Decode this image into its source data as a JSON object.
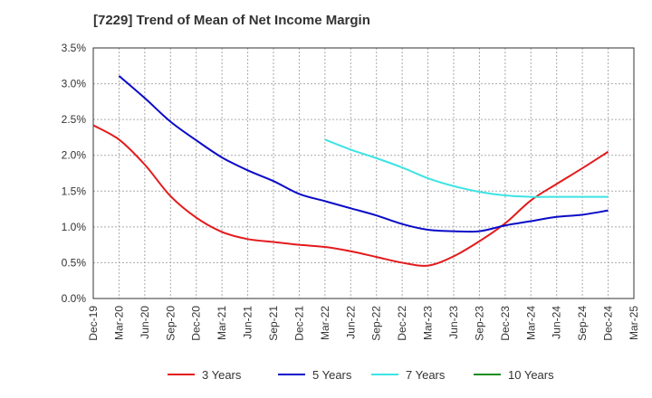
{
  "chart_data": {
    "type": "line",
    "title": "[7229]  Trend of Mean of Net Income Margin",
    "xlabel": "",
    "ylabel": "",
    "ylim": [
      0,
      3.5
    ],
    "y_ticks": [
      "0.0%",
      "0.5%",
      "1.0%",
      "1.5%",
      "2.0%",
      "2.5%",
      "3.0%",
      "3.5%"
    ],
    "x_ticks": [
      "Dec-19",
      "Mar-20",
      "Jun-20",
      "Sep-20",
      "Dec-20",
      "Mar-21",
      "Jun-21",
      "Sep-21",
      "Dec-21",
      "Mar-22",
      "Jun-22",
      "Sep-22",
      "Dec-22",
      "Mar-23",
      "Jun-23",
      "Sep-23",
      "Dec-23",
      "Mar-24",
      "Jun-24",
      "Sep-24",
      "Dec-24",
      "Mar-25"
    ],
    "grid": true,
    "legend_position": "bottom",
    "series": [
      {
        "name": "3 Years",
        "color": "#e31a1c",
        "x": [
          "Dec-19",
          "Mar-20",
          "Jun-20",
          "Sep-20",
          "Dec-20",
          "Mar-21",
          "Jun-21",
          "Sep-21",
          "Dec-21",
          "Mar-22",
          "Jun-22",
          "Sep-22",
          "Dec-22",
          "Mar-23",
          "Jun-23",
          "Sep-23",
          "Dec-23",
          "Mar-24",
          "Jun-24",
          "Sep-24",
          "Dec-24"
        ],
        "values": [
          2.42,
          2.22,
          1.87,
          1.43,
          1.13,
          0.93,
          0.83,
          0.79,
          0.75,
          0.72,
          0.66,
          0.58,
          0.5,
          0.46,
          0.59,
          0.8,
          1.05,
          1.37,
          1.6,
          1.82,
          2.05
        ]
      },
      {
        "name": "5 Years",
        "color": "#0a0ac8",
        "x": [
          "Mar-20",
          "Jun-20",
          "Sep-20",
          "Dec-20",
          "Mar-21",
          "Jun-21",
          "Sep-21",
          "Dec-21",
          "Mar-22",
          "Jun-22",
          "Sep-22",
          "Dec-22",
          "Mar-23",
          "Jun-23",
          "Sep-23",
          "Dec-23",
          "Mar-24",
          "Jun-24",
          "Sep-24",
          "Dec-24"
        ],
        "values": [
          3.11,
          2.8,
          2.47,
          2.21,
          1.97,
          1.79,
          1.64,
          1.46,
          1.36,
          1.26,
          1.16,
          1.04,
          0.96,
          0.94,
          0.94,
          1.02,
          1.08,
          1.14,
          1.17,
          1.23
        ]
      },
      {
        "name": "7 Years",
        "color": "#3de3e3",
        "x": [
          "Mar-22",
          "Jun-22",
          "Sep-22",
          "Dec-22",
          "Mar-23",
          "Jun-23",
          "Sep-23",
          "Dec-23",
          "Mar-24",
          "Jun-24",
          "Sep-24",
          "Dec-24"
        ],
        "values": [
          2.22,
          2.08,
          1.96,
          1.83,
          1.68,
          1.57,
          1.49,
          1.44,
          1.42,
          1.42,
          1.42,
          1.42
        ]
      },
      {
        "name": "10 Years",
        "color": "#1e8c1e",
        "x": [],
        "values": []
      }
    ]
  }
}
